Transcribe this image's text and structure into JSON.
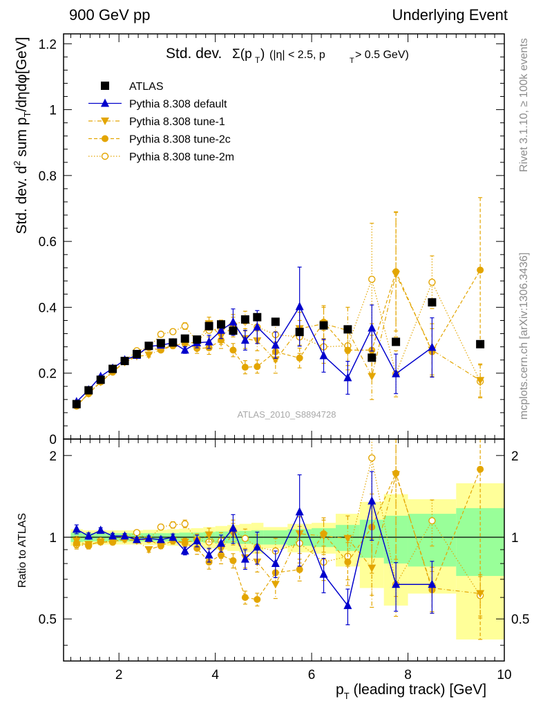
{
  "header": {
    "left": "900 GeV pp",
    "right": "Underlying Event"
  },
  "panel_title": {
    "main": "Std. dev.",
    "sigma": "Σ(p",
    "sub_T": "T",
    "close": ")",
    "cuts": "(|η| < 2.5, p",
    "cuts_sub": "T",
    "cuts_end": " > 0.5 GeV)"
  },
  "side_labels": {
    "rivet": "Rivet 3.1.10, ≥ 100k events",
    "mcplots": "mcplots.cern.ch [arXiv:1306.3436]"
  },
  "watermark": "ATLAS_2010_S8894728",
  "chart_data": {
    "type": "scatter",
    "main_panel": {
      "ylabel": "Std. dev. d² sum p_T/dηdφ[GeV]",
      "ylim": [
        0,
        1.23
      ],
      "yticks": [
        "0",
        "0.2",
        "0.4",
        "0.6",
        "0.8",
        "1",
        "1.2"
      ]
    },
    "ratio_panel": {
      "ylabel": "Ratio to ATLAS",
      "ylim": [
        0.35,
        2.3
      ],
      "yticks": [
        "0.5",
        "1",
        "2"
      ]
    },
    "xlabel": "p_T (leading track) [GeV]",
    "xlim": [
      0.85,
      10
    ],
    "xticks": [
      "2",
      "4",
      "6",
      "8",
      "10"
    ],
    "x": [
      1.12,
      1.37,
      1.62,
      1.87,
      2.12,
      2.37,
      2.62,
      2.87,
      3.12,
      3.37,
      3.62,
      3.87,
      4.12,
      4.37,
      4.62,
      4.87,
      5.25,
      5.75,
      6.25,
      6.75,
      7.25,
      7.75,
      8.5,
      9.5
    ],
    "series": [
      {
        "name": "ATLAS",
        "color": "#000000",
        "marker": "square",
        "values": [
          0.106,
          0.148,
          0.18,
          0.213,
          0.237,
          0.258,
          0.283,
          0.291,
          0.293,
          0.305,
          0.302,
          0.343,
          0.348,
          0.329,
          0.363,
          0.37,
          0.356,
          0.325,
          0.345,
          0.333,
          0.247,
          0.295,
          0.415,
          0.288
        ]
      },
      {
        "name": "Pythia 8.308 default",
        "color": "#0000cc",
        "marker": "triangle-up",
        "line": "solid",
        "values": [
          0.113,
          0.149,
          0.19,
          0.215,
          0.24,
          0.254,
          0.281,
          0.285,
          0.292,
          0.27,
          0.292,
          0.295,
          0.33,
          0.355,
          0.3,
          0.34,
          0.285,
          0.402,
          0.253,
          0.186,
          0.337,
          0.198,
          0.278,
          null
        ],
        "errors": [
          0.004,
          0.004,
          0.004,
          0.005,
          0.005,
          0.005,
          0.006,
          0.007,
          0.008,
          0.01,
          0.015,
          0.02,
          0.025,
          0.04,
          0.03,
          0.05,
          0.04,
          0.12,
          0.05,
          0.05,
          0.07,
          0.06,
          0.09,
          null
        ],
        "ratio": [
          1.07,
          1.01,
          1.06,
          1.01,
          1.01,
          0.98,
          0.99,
          0.98,
          1.0,
          0.89,
          0.97,
          0.86,
          0.95,
          1.08,
          0.83,
          0.92,
          0.8,
          1.24,
          0.73,
          0.56,
          1.36,
          0.67,
          0.67,
          null
        ]
      },
      {
        "name": "Pythia 8.308 tune-1",
        "color": "#e3a500",
        "marker": "triangle-down",
        "line": "dashdot",
        "values": [
          0.102,
          0.138,
          0.173,
          0.204,
          0.233,
          0.251,
          0.255,
          0.272,
          0.285,
          0.292,
          0.293,
          0.35,
          0.312,
          0.34,
          0.305,
          0.298,
          0.24,
          0.335,
          0.35,
          0.33,
          0.19,
          0.5,
          0.27,
          0.178
        ],
        "errors": [
          0.004,
          0.004,
          0.004,
          0.005,
          0.005,
          0.005,
          0.006,
          0.007,
          0.008,
          0.01,
          0.015,
          0.02,
          0.025,
          0.03,
          0.03,
          0.03,
          0.04,
          0.05,
          0.05,
          0.07,
          0.07,
          0.19,
          0.08,
          0.05
        ],
        "ratio": [
          0.97,
          0.94,
          0.96,
          0.96,
          0.98,
          0.97,
          0.9,
          0.93,
          0.97,
          0.96,
          0.97,
          1.02,
          0.9,
          1.03,
          0.84,
          0.81,
          0.67,
          1.03,
          1.01,
          0.99,
          0.77,
          1.7,
          0.65,
          0.62
        ]
      },
      {
        "name": "Pythia 8.308 tune-2c",
        "color": "#e3a500",
        "marker": "circle",
        "line": "dashed",
        "values": [
          0.1,
          0.138,
          0.173,
          0.203,
          0.234,
          0.254,
          0.277,
          0.27,
          0.283,
          0.29,
          0.275,
          0.277,
          0.3,
          0.27,
          0.218,
          0.22,
          0.265,
          0.246,
          0.355,
          0.27,
          0.27,
          0.508,
          0.265,
          0.513
        ],
        "errors": [
          0.004,
          0.004,
          0.004,
          0.005,
          0.005,
          0.005,
          0.006,
          0.007,
          0.008,
          0.01,
          0.015,
          0.02,
          0.025,
          0.02,
          0.02,
          0.02,
          0.03,
          0.03,
          0.05,
          0.06,
          0.08,
          0.18,
          0.07,
          0.22
        ],
        "ratio": [
          0.95,
          0.94,
          0.96,
          0.96,
          0.99,
          0.98,
          0.98,
          0.93,
          0.97,
          0.95,
          0.91,
          0.81,
          0.86,
          0.82,
          0.6,
          0.59,
          0.74,
          0.76,
          1.03,
          0.81,
          1.09,
          1.72,
          0.64,
          1.78
        ]
      },
      {
        "name": "Pythia 8.308 tune-2m",
        "color": "#e3a500",
        "marker": "open-circle",
        "line": "dotted",
        "values": [
          0.1,
          0.138,
          0.175,
          0.205,
          0.237,
          0.268,
          0.278,
          0.318,
          0.326,
          0.343,
          0.296,
          0.33,
          0.336,
          0.348,
          0.358,
          0.34,
          0.317,
          0.31,
          0.28,
          0.283,
          0.485,
          0.198,
          0.476,
          0.175
        ],
        "errors": [
          0.004,
          0.004,
          0.004,
          0.005,
          0.005,
          0.005,
          0.006,
          0.007,
          0.008,
          0.01,
          0.015,
          0.02,
          0.025,
          0.03,
          0.03,
          0.04,
          0.04,
          0.05,
          0.05,
          0.06,
          0.17,
          0.07,
          0.08,
          0.05
        ],
        "ratio": [
          0.94,
          0.93,
          0.97,
          0.96,
          1.0,
          1.04,
          0.98,
          1.09,
          1.11,
          1.12,
          0.98,
          0.96,
          0.97,
          1.06,
          0.99,
          0.92,
          0.89,
          0.95,
          0.81,
          0.85,
          1.96,
          0.67,
          1.15,
          0.61
        ]
      }
    ],
    "bands": {
      "x_edges": [
        1.0,
        1.25,
        1.5,
        1.75,
        2.0,
        2.25,
        2.5,
        2.75,
        3.0,
        3.25,
        3.5,
        3.75,
        4.0,
        4.25,
        4.5,
        4.75,
        5.0,
        5.5,
        6.0,
        6.5,
        7.0,
        7.5,
        8.0,
        9.0,
        10.0
      ],
      "stat": [
        0.04,
        0.035,
        0.035,
        0.035,
        0.035,
        0.035,
        0.035,
        0.035,
        0.035,
        0.04,
        0.04,
        0.045,
        0.05,
        0.05,
        0.055,
        0.06,
        0.06,
        0.07,
        0.08,
        0.11,
        0.16,
        0.2,
        0.22,
        0.28
      ],
      "total": [
        0.07,
        0.06,
        0.06,
        0.06,
        0.06,
        0.06,
        0.065,
        0.065,
        0.07,
        0.075,
        0.08,
        0.09,
        0.1,
        0.11,
        0.12,
        0.13,
        0.09,
        0.12,
        0.13,
        0.22,
        0.35,
        0.44,
        0.38,
        0.58
      ]
    }
  }
}
